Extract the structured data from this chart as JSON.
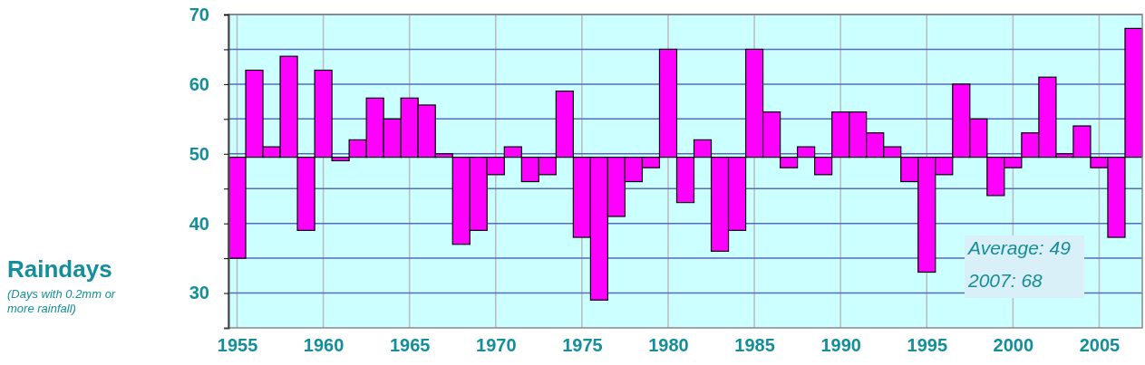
{
  "chart_data": {
    "type": "bar",
    "title": "Raindays",
    "subtitle": "(Days with 0.2mm or more rainfall)",
    "x": [
      1955,
      1956,
      1957,
      1958,
      1959,
      1960,
      1961,
      1962,
      1963,
      1964,
      1965,
      1966,
      1967,
      1968,
      1969,
      1970,
      1971,
      1972,
      1973,
      1974,
      1975,
      1976,
      1977,
      1978,
      1979,
      1980,
      1981,
      1982,
      1983,
      1984,
      1985,
      1986,
      1987,
      1988,
      1989,
      1990,
      1991,
      1992,
      1993,
      1994,
      1995,
      1996,
      1997,
      1998,
      1999,
      2000,
      2001,
      2002,
      2003,
      2004,
      2005,
      2006,
      2007
    ],
    "base": [
      49.5,
      49.5,
      49.5,
      49.5,
      49.5,
      49.5,
      49.5,
      49.5,
      49.5,
      49.5,
      49.5,
      49.5,
      49.5,
      49.5,
      49.5,
      49.5,
      49.5,
      49.5,
      49.5,
      49.5,
      49.5,
      49.5,
      49.5,
      49.5,
      49.5,
      49.5,
      49.5,
      49.5,
      49.5,
      49.5,
      49.5,
      49.5,
      49.5,
      49.5,
      49.5,
      49.5,
      49.5,
      49.5,
      49.5,
      49.5,
      49.5,
      49.5,
      49.5,
      49.5,
      49.5,
      49.5,
      49.5,
      49.5,
      49.5,
      49.5,
      49.5,
      49.5,
      49.5
    ],
    "values": [
      -14.5,
      12.5,
      1.5,
      14.5,
      -10.5,
      12.5,
      -0.5,
      2.5,
      8.5,
      5.5,
      8.5,
      7.5,
      0.5,
      -12.5,
      -10.5,
      -2.5,
      1.5,
      -3.5,
      -2.5,
      9.5,
      -11.5,
      -20.5,
      -8.5,
      -3.5,
      -1.5,
      15.5,
      -6.5,
      2.5,
      -13.5,
      -10.5,
      15.5,
      6.5,
      -1.5,
      1.5,
      -2.5,
      6.5,
      6.5,
      3.5,
      1.5,
      -3.5,
      -16.5,
      -2.5,
      10.5,
      5.5,
      -5.5,
      -1.5,
      3.5,
      11.5,
      0.5,
      4.5,
      -1.5,
      -11.5,
      18.5
    ],
    "color": "#ff00ff",
    "xlim": [
      1954.5,
      2007.5
    ],
    "xticks": [
      1955,
      1960,
      1965,
      1970,
      1975,
      1980,
      1985,
      1990,
      1995,
      2000,
      2005
    ],
    "ylim": [
      25,
      70
    ],
    "yticks": [
      30,
      {
        "value": 35,
        "label": null
      },
      40,
      {
        "value": 45,
        "label": null
      },
      50,
      {
        "value": 55,
        "label": null
      },
      60,
      {
        "value": 65,
        "label": null
      },
      70
    ],
    "grid": true,
    "annotations": [
      "Average: 49",
      "2007: 68"
    ]
  }
}
